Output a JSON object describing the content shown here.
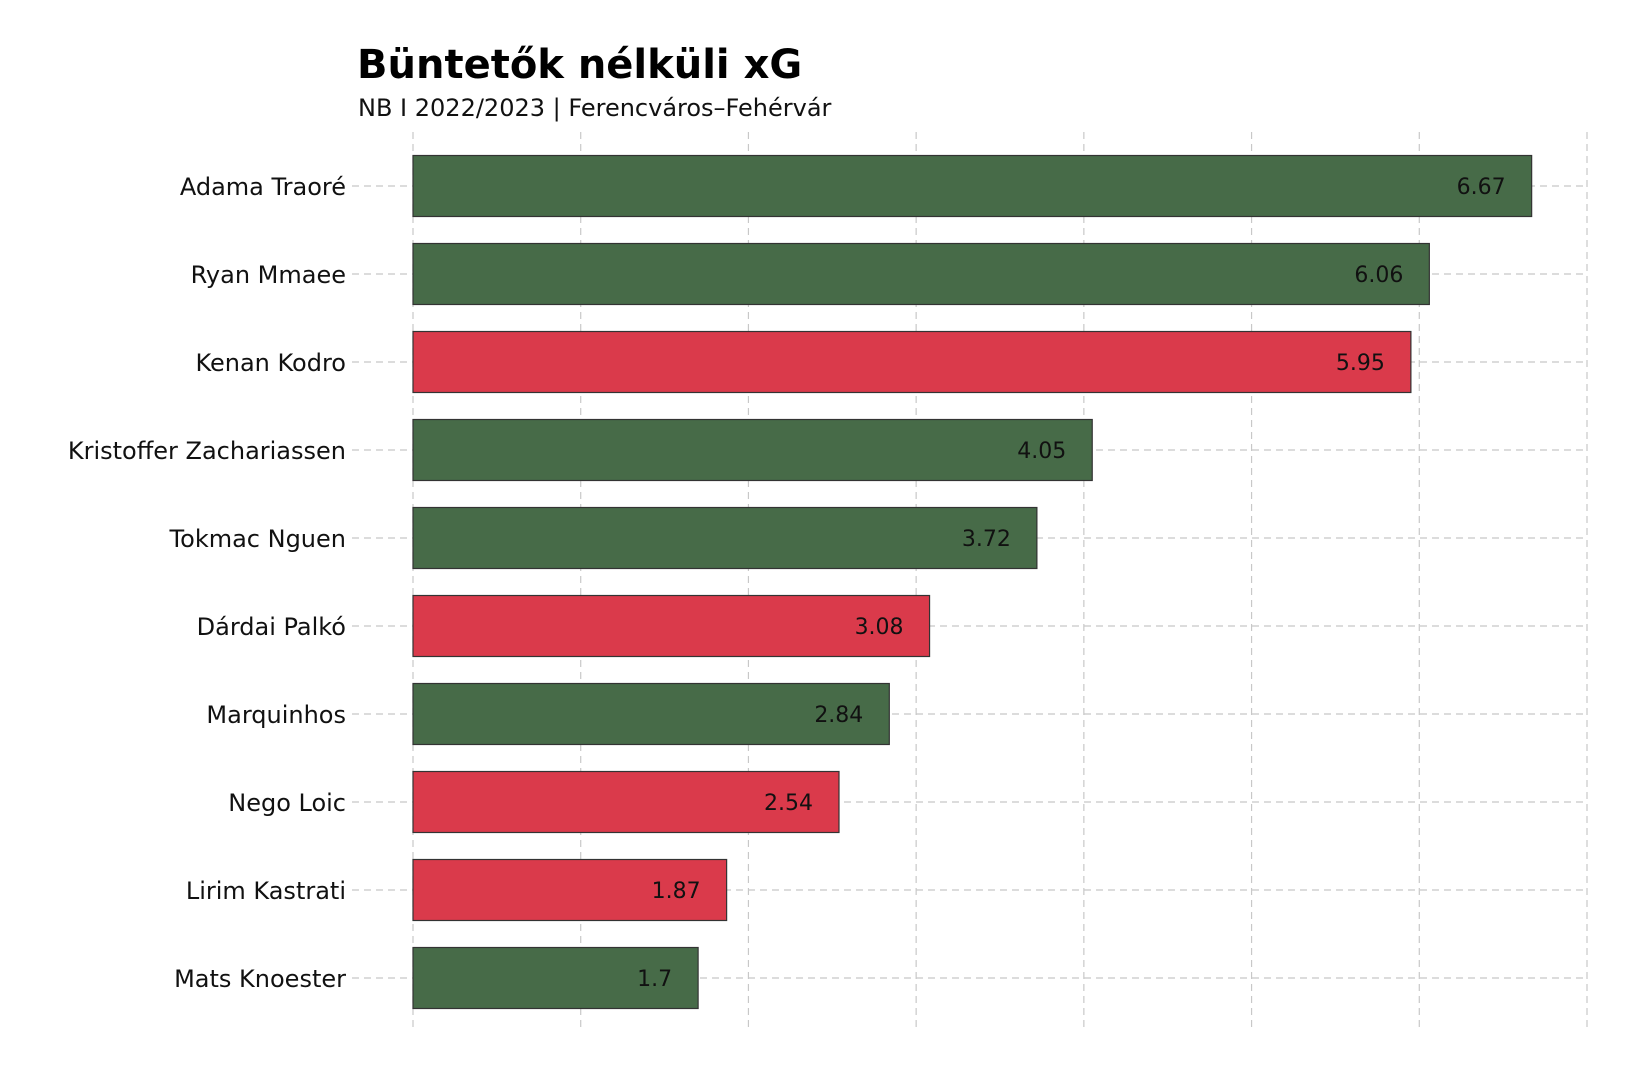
{
  "chart_data": {
    "type": "bar",
    "orientation": "horizontal",
    "title": "Büntetők nélküli xG",
    "subtitle": "NB I 2022/2023 | Ferencváros–Fehérvár",
    "categories": [
      "Adama Traoré",
      "Ryan Mmaee",
      "Kenan Kodro",
      "Kristoffer Zachariassen",
      "Tokmac Nguen",
      "Dárdai Palkó",
      "Marquinhos",
      "Nego Loic",
      "Lirim Kastrati",
      "Mats Knoester"
    ],
    "values": [
      6.67,
      6.06,
      5.95,
      4.05,
      3.72,
      3.08,
      2.84,
      2.54,
      1.87,
      1.7
    ],
    "value_labels": [
      "6.67",
      "6.06",
      "5.95",
      "4.05",
      "3.72",
      "3.08",
      "2.84",
      "2.54",
      "1.87",
      "1.7"
    ],
    "teams": [
      "Ferencváros",
      "Ferencváros",
      "Fehérvár",
      "Ferencváros",
      "Ferencváros",
      "Fehérvár",
      "Ferencváros",
      "Fehérvár",
      "Fehérvár",
      "Ferencváros"
    ],
    "colors": {
      "Ferencváros": "#476b48",
      "Fehérvár": "#da3a4b",
      "bar_outline": "#333333",
      "grid": "#c8c8c8"
    },
    "xlim": [
      0,
      7
    ],
    "x_gridlines": [
      0,
      1,
      2,
      3,
      4,
      5,
      6,
      7
    ],
    "grid": true,
    "grid_style": "dashed",
    "x_tick_labels_shown": false,
    "xlabel": "",
    "ylabel": "",
    "legend": "none"
  }
}
